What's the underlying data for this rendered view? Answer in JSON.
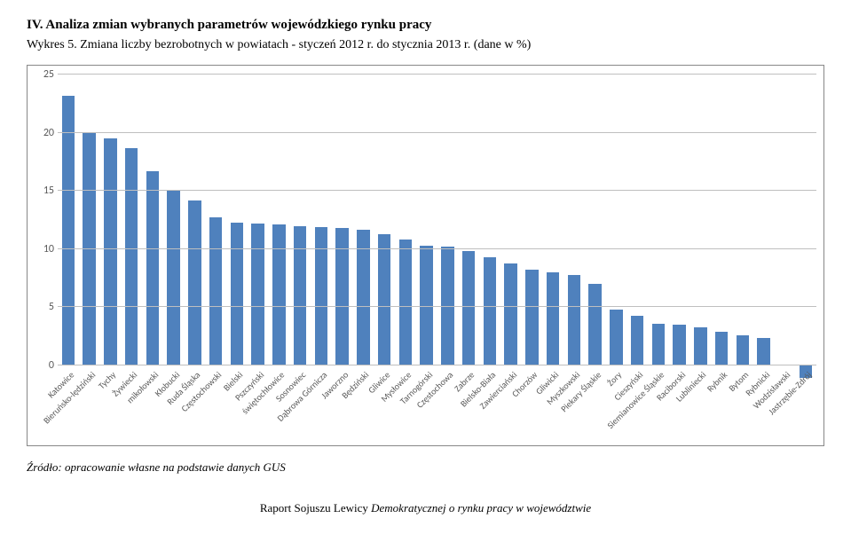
{
  "heading": "IV. Analiza zmian wybranych parametrów wojewódzkiego rynku pracy",
  "subheading": "Wykres 5. Zmiana liczby bezrobotnych w powiatach - styczeń 2012 r. do stycznia 2013 r. (dane w %)",
  "source": "Źródło: opracowanie własne na podstawie danych GUS",
  "footer_plain": "Raport Sojuszu Lewicy ",
  "footer_italic": "Demokratycznej o rynku pracy w województwie",
  "chart": {
    "type": "bar",
    "ylim": [
      0,
      25
    ],
    "ytick_step": 5,
    "yticks": [
      0,
      5,
      10,
      15,
      20,
      25
    ],
    "grid_color": "#bfbfbf",
    "bar_color": "#4f81bd",
    "negative_bar_color": "#4f81bd",
    "background_color": "#ffffff",
    "label_fontsize": 10,
    "axis_fontsize": 12,
    "categories": [
      "Katowice",
      "Bieruńsko-lędziński",
      "Tychy",
      "Żywiecki",
      "mikołowski",
      "Kłobucki",
      "Ruda Śląska",
      "Częstochowski",
      "Bielski",
      "Pszczyński",
      "świętochłowice",
      "Sosnowiec",
      "Dąbrowa Górnicza",
      "Jaworzno",
      "Będziński",
      "Gliwice",
      "Mysłowice",
      "Tarnogórski",
      "Częstochowa",
      "Zabrze",
      "Bielsko-Biała",
      "Zawierciański",
      "Chorzów",
      "Gliwicki",
      "Myszkowski",
      "Piekary Śląskie",
      "Żory",
      "Cieszyński",
      "Siemianowice Śląskie",
      "Raciborski",
      "Lubliniecki",
      "Rybnik",
      "Bytom",
      "Rybnicki",
      "Wodzisławski",
      "Jastrzębie-Zdrój"
    ],
    "values": [
      23.2,
      20.0,
      19.5,
      18.7,
      16.7,
      15.0,
      14.2,
      12.7,
      12.3,
      12.2,
      12.1,
      12.0,
      11.9,
      11.8,
      11.7,
      11.3,
      10.8,
      10.3,
      10.2,
      9.8,
      9.3,
      8.8,
      8.2,
      8.0,
      7.8,
      7.0,
      4.8,
      4.3,
      3.6,
      3.5,
      3.3,
      2.9,
      2.6,
      2.4,
      0.1,
      -1.1
    ]
  }
}
